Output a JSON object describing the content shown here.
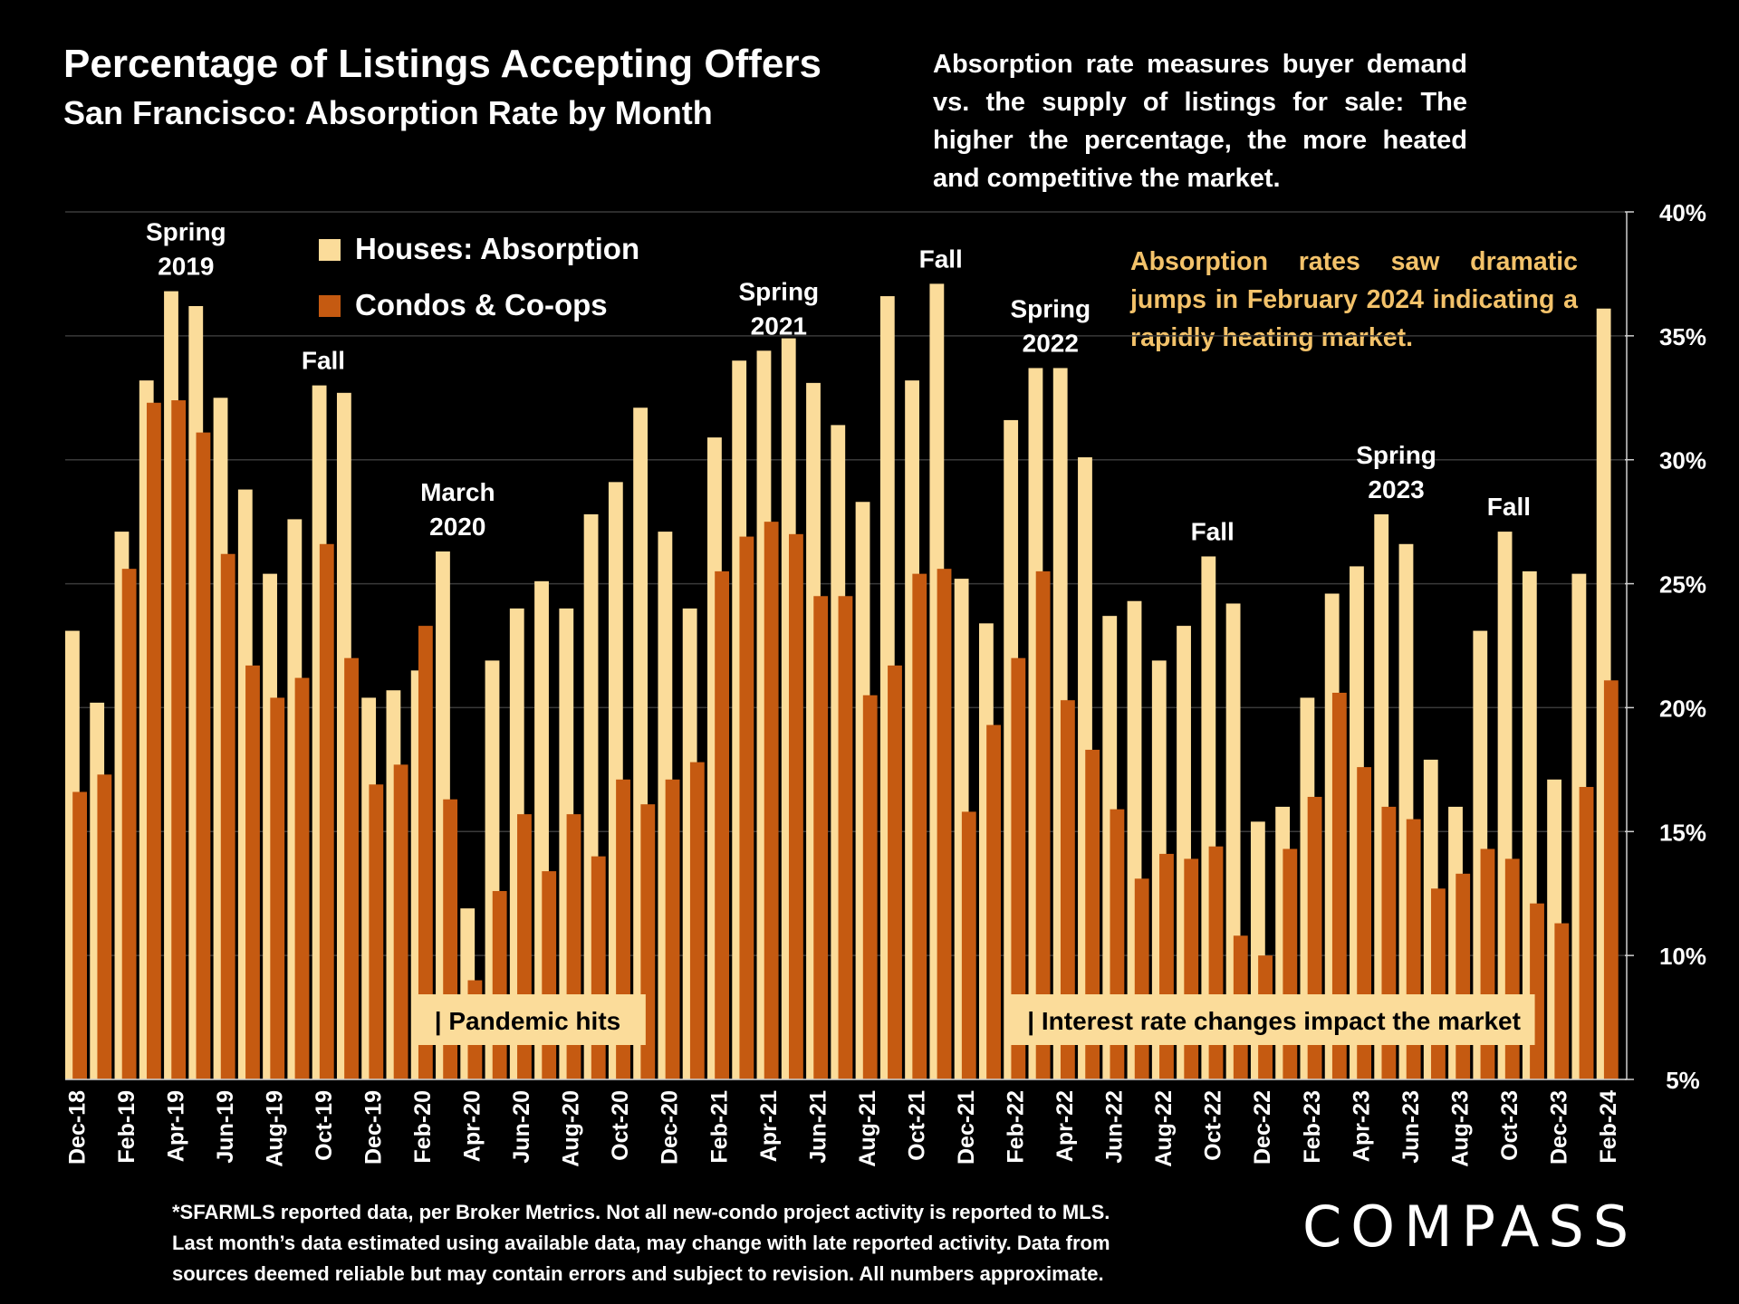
{
  "header": {
    "title": "Percentage of Listings Accepting Offers",
    "subtitle": "San Francisco:  Absorption Rate by Month"
  },
  "description": "Absorption rate measures buyer demand vs. the supply of listings for sale: The higher the percentage, the more heated and competitive the market.",
  "highlight": "Absorption rates saw dramatic jumps in February 2024 indicating a rapidly heating market.",
  "footnote": {
    "line1": "*SFARMLS reported data, per Broker Metrics. Not all new-condo project activity is reported to MLS.",
    "line2": "Last month’s data estimated using available data, may change with late reported activity. Data from",
    "line3": "sources deemed reliable but may contain errors and subject to revision. All numbers approximate."
  },
  "logo": "COMPASS",
  "colors": {
    "background": "#000000",
    "houses": "#fbdc9a",
    "condos": "#c55a11",
    "highlight_text": "#f3c26a",
    "gridline": "#3a3a3a"
  },
  "chart_data": {
    "type": "bar",
    "title": "Percentage of Listings Accepting Offers",
    "xlabel": "",
    "ylabel": "",
    "ylim": [
      5,
      40
    ],
    "yticks": [
      "5%",
      "10%",
      "15%",
      "20%",
      "25%",
      "30%",
      "35%",
      "40%"
    ],
    "y_axis_position": "right",
    "grid": true,
    "legend_placement": "top-left",
    "categories": [
      "Dec-18",
      "Jan-19",
      "Feb-19",
      "Mar-19",
      "Apr-19",
      "May-19",
      "Jun-19",
      "Jul-19",
      "Aug-19",
      "Sep-19",
      "Oct-19",
      "Nov-19",
      "Dec-19",
      "Jan-20",
      "Feb-20",
      "Mar-20",
      "Apr-20",
      "May-20",
      "Jun-20",
      "Jul-20",
      "Aug-20",
      "Sep-20",
      "Oct-20",
      "Nov-20",
      "Dec-20",
      "Jan-21",
      "Feb-21",
      "Mar-21",
      "Apr-21",
      "May-21",
      "Jun-21",
      "Jul-21",
      "Aug-21",
      "Sep-21",
      "Oct-21",
      "Nov-21",
      "Dec-21",
      "Jan-22",
      "Feb-22",
      "Mar-22",
      "Apr-22",
      "May-22",
      "Jun-22",
      "Jul-22",
      "Aug-22",
      "Sep-22",
      "Oct-22",
      "Nov-22",
      "Dec-22",
      "Jan-23",
      "Feb-23",
      "Mar-23",
      "Apr-23",
      "May-23",
      "Jun-23",
      "Jul-23",
      "Aug-23",
      "Sep-23",
      "Oct-23",
      "Nov-23",
      "Dec-23",
      "Jan-24",
      "Feb-24"
    ],
    "tick_labels_shown": [
      "Dec-18",
      "Feb-19",
      "Apr-19",
      "Jun-19",
      "Aug-19",
      "Oct-19",
      "Dec-19",
      "Feb-20",
      "Apr-20",
      "Jun-20",
      "Aug-20",
      "Oct-20",
      "Dec-20",
      "Feb-21",
      "Apr-21",
      "Jun-21",
      "Aug-21",
      "Oct-21",
      "Dec-21",
      "Feb-22",
      "Apr-22",
      "Jun-22",
      "Aug-22",
      "Oct-22",
      "Dec-22",
      "Feb-23",
      "Apr-23",
      "Jun-23",
      "Aug-23",
      "Oct-23",
      "Dec-23",
      "Feb-24"
    ],
    "series": [
      {
        "name": "Houses: Absorption",
        "values": [
          23.1,
          20.2,
          27.1,
          33.2,
          36.8,
          36.2,
          32.5,
          28.8,
          25.4,
          27.6,
          33.0,
          32.7,
          20.4,
          20.7,
          21.5,
          26.3,
          11.9,
          21.9,
          24.0,
          25.1,
          24.0,
          27.8,
          29.1,
          32.1,
          27.1,
          24.0,
          30.9,
          34.0,
          34.4,
          34.9,
          33.1,
          31.4,
          28.3,
          36.6,
          33.2,
          37.1,
          25.2,
          23.4,
          31.6,
          33.7,
          33.7,
          30.1,
          23.7,
          24.3,
          21.9,
          23.3,
          26.1,
          24.2,
          15.4,
          16.0,
          20.4,
          24.6,
          25.7,
          27.8,
          26.6,
          17.9,
          16.0,
          23.1,
          27.1,
          25.5,
          17.1,
          25.4,
          36.1
        ]
      },
      {
        "name": "Condos & Co-ops",
        "values": [
          16.6,
          17.3,
          25.6,
          32.3,
          32.4,
          31.1,
          26.2,
          21.7,
          20.4,
          21.2,
          26.6,
          22.0,
          16.9,
          17.7,
          23.3,
          16.3,
          9.0,
          12.6,
          15.7,
          13.4,
          15.7,
          14.0,
          17.1,
          16.1,
          17.1,
          17.8,
          25.5,
          26.9,
          27.5,
          27.0,
          24.5,
          24.5,
          20.5,
          21.7,
          25.4,
          25.6,
          15.8,
          19.3,
          22.0,
          25.5,
          20.3,
          18.3,
          15.9,
          13.1,
          14.1,
          13.9,
          14.4,
          10.8,
          10.0,
          14.3,
          16.4,
          20.6,
          17.6,
          16.0,
          15.5,
          12.7,
          13.3,
          14.3,
          13.9,
          12.1,
          11.3,
          16.8,
          21.1
        ]
      }
    ],
    "annotations": [
      {
        "text": "Spring\n2019",
        "index": 4
      },
      {
        "text": "Fall",
        "index": 10
      },
      {
        "text": "March\n2020",
        "index": 15
      },
      {
        "text": "Spring\n2021",
        "index": 28
      },
      {
        "text": "Fall",
        "index": 35
      },
      {
        "text": "Spring\n2022",
        "index": 39
      },
      {
        "text": "Fall",
        "index": 46
      },
      {
        "text": "Spring\n2023",
        "index": 53
      },
      {
        "text": "Fall",
        "index": 58
      }
    ],
    "callouts": [
      {
        "text": "| Pandemic hits",
        "start_index": 14,
        "end_index": 23
      },
      {
        "text": "| Interest rate changes impact the market",
        "start_index": 38,
        "end_index": 59
      }
    ]
  }
}
